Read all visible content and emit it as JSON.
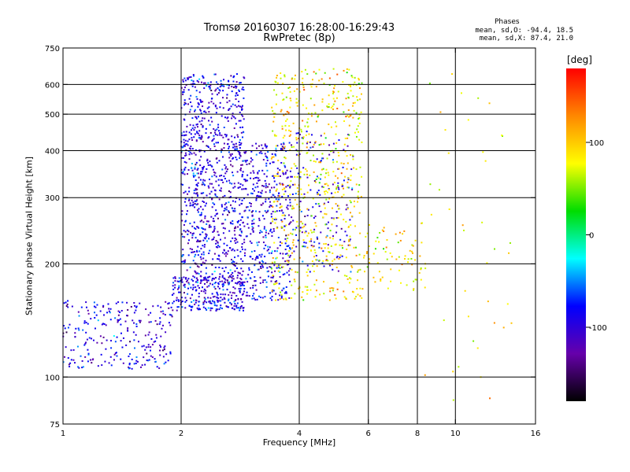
{
  "chart_data": {
    "type": "scatter",
    "title": "Tromsø 20160307 16:28:00-16:29:43",
    "subtitle": "RwPretec (8p)",
    "xlabel": "Frequency [MHz]",
    "ylabel": "Stationary phase Virtual Height [km]",
    "x_scale": "log",
    "y_scale": "log",
    "xlim": [
      1,
      16
    ],
    "ylim": [
      75,
      750
    ],
    "x_ticks": [
      "1",
      "2",
      "4",
      "6",
      "8",
      "10",
      "16"
    ],
    "y_ticks": [
      "75",
      "100",
      "200",
      "300",
      "400",
      "500",
      "600",
      "750"
    ],
    "x_gridlines": [
      2,
      4,
      6,
      8,
      10
    ],
    "y_gridlines": [
      100,
      200,
      300,
      400,
      500,
      600
    ],
    "grid": true,
    "colorbar": {
      "label": "[deg]",
      "ticks": [
        "100",
        "0",
        "-100"
      ],
      "range": [
        -180,
        180
      ],
      "colors": [
        "#ff0000",
        "#ff8800",
        "#ffff00",
        "#00dd00",
        "#00ffff",
        "#0000ff",
        "#6600aa",
        "#000000"
      ]
    },
    "stats": {
      "header": "Phases",
      "line1": "mean, sd,O: -94.4, 18.5",
      "line2": "mean, sd,X:  87.4, 21.0"
    },
    "series": [
      {
        "name": "O",
        "phase_mean": -94.4,
        "clusters": [
          {
            "x": [
              1.0,
              1.9
            ],
            "y": [
              105,
              160
            ],
            "n": 260
          },
          {
            "x": [
              1.9,
              2.9
            ],
            "y": [
              150,
              185
            ],
            "n": 280
          },
          {
            "x": [
              2.0,
              2.9
            ],
            "y": [
              180,
              640
            ],
            "n": 900
          },
          {
            "x": [
              2.9,
              3.8
            ],
            "y": [
              160,
              420
            ],
            "n": 420
          },
          {
            "x": [
              3.8,
              5.5
            ],
            "y": [
              190,
              450
            ],
            "n": 160
          }
        ]
      },
      {
        "name": "X",
        "phase_mean": 87.4,
        "clusters": [
          {
            "x": [
              3.4,
              5.8
            ],
            "y": [
              160,
              660
            ],
            "n": 600
          },
          {
            "x": [
              5.8,
              8.4
            ],
            "y": [
              170,
              260
            ],
            "n": 80
          },
          {
            "x": [
              8.0,
              14.0
            ],
            "y": [
              85,
              680
            ],
            "n": 40
          }
        ]
      }
    ]
  }
}
